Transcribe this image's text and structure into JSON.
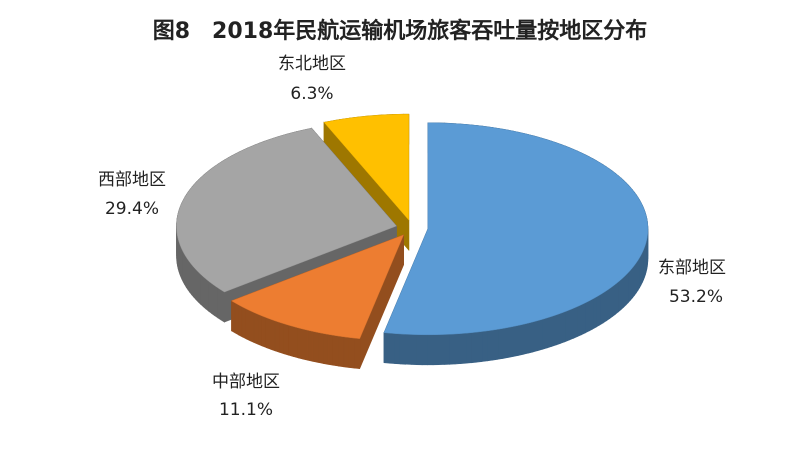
{
  "chart_data": {
    "type": "pie",
    "title": "图8　2018年民航运输机场旅客吞吐量按地区分布",
    "categories": [
      "东部地区",
      "中部地区",
      "西部地区",
      "东北地区"
    ],
    "values": [
      53.2,
      11.1,
      29.4,
      6.3
    ],
    "value_labels": [
      "53.2%",
      "11.1%",
      "29.4%",
      "6.3%"
    ],
    "colors": [
      "#5b9bd5",
      "#ed7d31",
      "#a5a5a5",
      "#ffc000"
    ]
  }
}
